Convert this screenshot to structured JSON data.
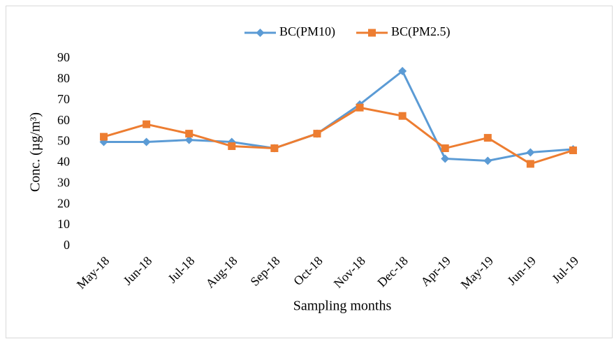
{
  "chart_data": {
    "type": "line",
    "x_label": "Sampling months",
    "y_label": "Conc. (µg/m³)",
    "categories": [
      "May-18",
      "Jun-18",
      "Jul-18",
      "Aug-18",
      "Sep-18",
      "Oct-18",
      "Nov-18",
      "Dec-18",
      "Apr-19",
      "May-19",
      "Jun-19",
      "Jul-19"
    ],
    "series": [
      {
        "name": "BC(PM10)",
        "color": "#5b9bd5",
        "marker": "diamond",
        "values": [
          50,
          50,
          51,
          50,
          47,
          54,
          68,
          84,
          42,
          41,
          45,
          46.5
        ]
      },
      {
        "name": "BC(PM2.5)",
        "color": "#ed7d31",
        "marker": "square",
        "values": [
          52.5,
          58.5,
          54,
          48,
          47,
          54,
          66.5,
          62.5,
          47,
          52,
          39.5,
          46
        ]
      }
    ],
    "ylim": [
      0,
      90
    ],
    "yticks": [
      0,
      10,
      20,
      30,
      40,
      50,
      60,
      70,
      80,
      90
    ],
    "grid": false,
    "legend": "top"
  }
}
